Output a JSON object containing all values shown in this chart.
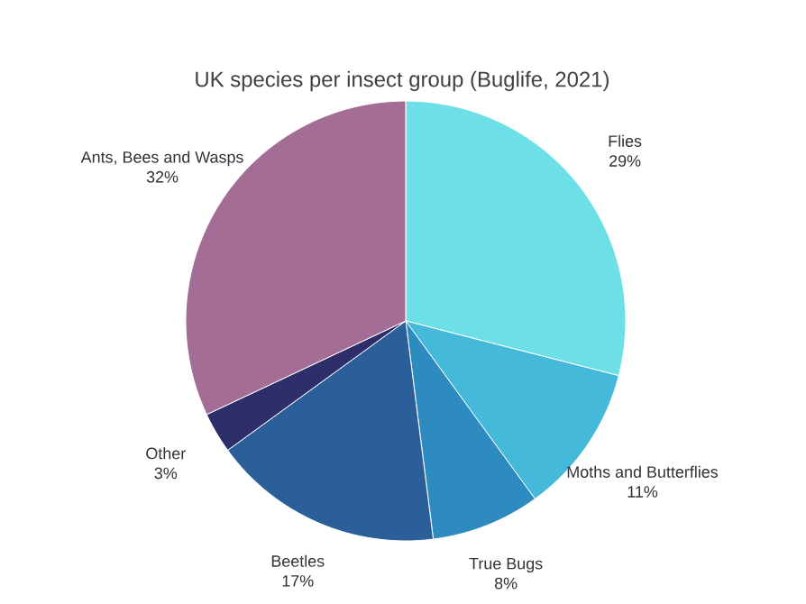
{
  "chart_data": {
    "type": "pie",
    "title": "UK species per insect group (Buglife, 2021)",
    "categories": [
      "Flies",
      "Moths and Butterflies",
      "True Bugs",
      "Beetles",
      "Other",
      "Ants, Bees and Wasps"
    ],
    "values": [
      29,
      11,
      8,
      17,
      3,
      32
    ],
    "value_labels": [
      "29%",
      "11%",
      "8%",
      "17%",
      "3%",
      "32%"
    ],
    "colors": [
      "#6ce0e6",
      "#45b9d9",
      "#2e8bbf",
      "#2a5f9a",
      "#2e2e6b",
      "#a46d96"
    ]
  }
}
